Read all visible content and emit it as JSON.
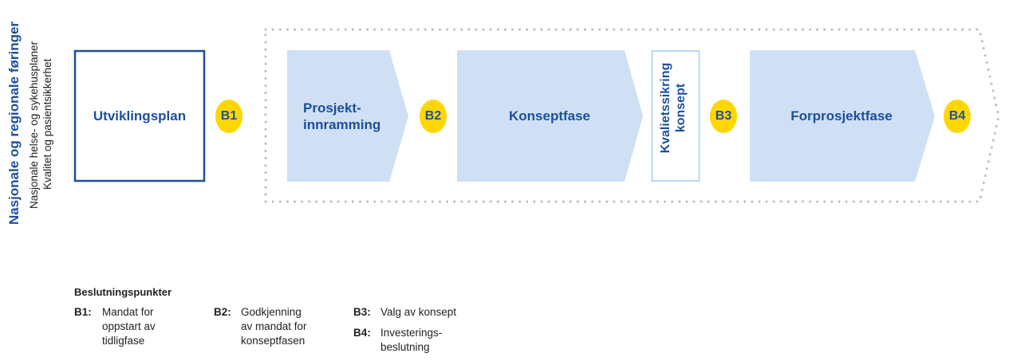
{
  "side": {
    "title": "Nasjonale og regionale føringer",
    "lines": [
      "Nasjonale helse- og sykehusplaner",
      "Kvalitet og pasientsikkerhet"
    ]
  },
  "phases": {
    "utviklingsplan": "Utviklingsplan",
    "prosjektinnramming": [
      "Prosjekt-",
      "innramming"
    ],
    "konseptfase": "Konseptfase",
    "kvalitetssikring": [
      "Kvalietssikring",
      "konsept"
    ],
    "forprosjektfase": "Forprosjektfase"
  },
  "badges": [
    "B1",
    "B2",
    "B3",
    "B4"
  ],
  "legend": {
    "title": "Beslutningspunkter",
    "items": [
      {
        "key": "B1:",
        "text": [
          "Mandat for",
          "oppstart av",
          "tidligfase"
        ]
      },
      {
        "key": "B2:",
        "text": [
          "Godkjenning",
          "av mandat for",
          "konseptfasen"
        ]
      },
      {
        "key": "B3:",
        "text": [
          "Valg av konsept"
        ]
      },
      {
        "key": "B4:",
        "text": [
          "Investerings-",
          "beslutning"
        ]
      }
    ]
  },
  "colors": {
    "dark_blue": "#1c4f9c",
    "light_blue": "#cfe0f4",
    "badge_yellow": "#ffd700",
    "dotted_gray": "#bdbdbd"
  }
}
